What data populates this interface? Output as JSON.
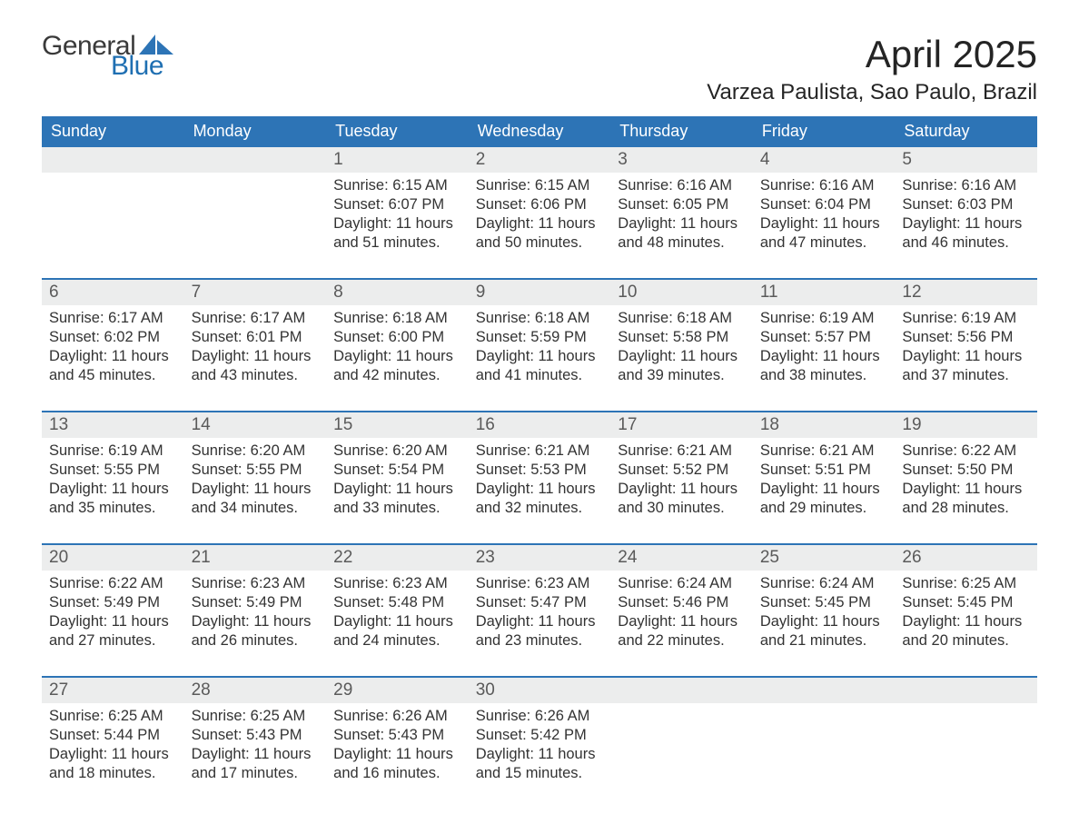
{
  "brand": {
    "word1": "General",
    "word2": "Blue",
    "word1_color": "#3a3a3a",
    "word2_color": "#1f6fb2",
    "sail_color": "#2d74b6"
  },
  "title": "April 2025",
  "location": "Varzea Paulista, Sao Paulo, Brazil",
  "colors": {
    "header_bg": "#2d74b6",
    "header_text": "#ffffff",
    "daynum_bg": "#eceded",
    "daynum_text": "#5a5a5a",
    "body_text": "#333333",
    "week_border": "#2d74b6",
    "page_bg": "#ffffff"
  },
  "daynames": [
    "Sunday",
    "Monday",
    "Tuesday",
    "Wednesday",
    "Thursday",
    "Friday",
    "Saturday"
  ],
  "weeks": [
    [
      {
        "n": "",
        "lines": []
      },
      {
        "n": "",
        "lines": []
      },
      {
        "n": "1",
        "lines": [
          "Sunrise: 6:15 AM",
          "Sunset: 6:07 PM",
          "Daylight: 11 hours and 51 minutes."
        ]
      },
      {
        "n": "2",
        "lines": [
          "Sunrise: 6:15 AM",
          "Sunset: 6:06 PM",
          "Daylight: 11 hours and 50 minutes."
        ]
      },
      {
        "n": "3",
        "lines": [
          "Sunrise: 6:16 AM",
          "Sunset: 6:05 PM",
          "Daylight: 11 hours and 48 minutes."
        ]
      },
      {
        "n": "4",
        "lines": [
          "Sunrise: 6:16 AM",
          "Sunset: 6:04 PM",
          "Daylight: 11 hours and 47 minutes."
        ]
      },
      {
        "n": "5",
        "lines": [
          "Sunrise: 6:16 AM",
          "Sunset: 6:03 PM",
          "Daylight: 11 hours and 46 minutes."
        ]
      }
    ],
    [
      {
        "n": "6",
        "lines": [
          "Sunrise: 6:17 AM",
          "Sunset: 6:02 PM",
          "Daylight: 11 hours and 45 minutes."
        ]
      },
      {
        "n": "7",
        "lines": [
          "Sunrise: 6:17 AM",
          "Sunset: 6:01 PM",
          "Daylight: 11 hours and 43 minutes."
        ]
      },
      {
        "n": "8",
        "lines": [
          "Sunrise: 6:18 AM",
          "Sunset: 6:00 PM",
          "Daylight: 11 hours and 42 minutes."
        ]
      },
      {
        "n": "9",
        "lines": [
          "Sunrise: 6:18 AM",
          "Sunset: 5:59 PM",
          "Daylight: 11 hours and 41 minutes."
        ]
      },
      {
        "n": "10",
        "lines": [
          "Sunrise: 6:18 AM",
          "Sunset: 5:58 PM",
          "Daylight: 11 hours and 39 minutes."
        ]
      },
      {
        "n": "11",
        "lines": [
          "Sunrise: 6:19 AM",
          "Sunset: 5:57 PM",
          "Daylight: 11 hours and 38 minutes."
        ]
      },
      {
        "n": "12",
        "lines": [
          "Sunrise: 6:19 AM",
          "Sunset: 5:56 PM",
          "Daylight: 11 hours and 37 minutes."
        ]
      }
    ],
    [
      {
        "n": "13",
        "lines": [
          "Sunrise: 6:19 AM",
          "Sunset: 5:55 PM",
          "Daylight: 11 hours and 35 minutes."
        ]
      },
      {
        "n": "14",
        "lines": [
          "Sunrise: 6:20 AM",
          "Sunset: 5:55 PM",
          "Daylight: 11 hours and 34 minutes."
        ]
      },
      {
        "n": "15",
        "lines": [
          "Sunrise: 6:20 AM",
          "Sunset: 5:54 PM",
          "Daylight: 11 hours and 33 minutes."
        ]
      },
      {
        "n": "16",
        "lines": [
          "Sunrise: 6:21 AM",
          "Sunset: 5:53 PM",
          "Daylight: 11 hours and 32 minutes."
        ]
      },
      {
        "n": "17",
        "lines": [
          "Sunrise: 6:21 AM",
          "Sunset: 5:52 PM",
          "Daylight: 11 hours and 30 minutes."
        ]
      },
      {
        "n": "18",
        "lines": [
          "Sunrise: 6:21 AM",
          "Sunset: 5:51 PM",
          "Daylight: 11 hours and 29 minutes."
        ]
      },
      {
        "n": "19",
        "lines": [
          "Sunrise: 6:22 AM",
          "Sunset: 5:50 PM",
          "Daylight: 11 hours and 28 minutes."
        ]
      }
    ],
    [
      {
        "n": "20",
        "lines": [
          "Sunrise: 6:22 AM",
          "Sunset: 5:49 PM",
          "Daylight: 11 hours and 27 minutes."
        ]
      },
      {
        "n": "21",
        "lines": [
          "Sunrise: 6:23 AM",
          "Sunset: 5:49 PM",
          "Daylight: 11 hours and 26 minutes."
        ]
      },
      {
        "n": "22",
        "lines": [
          "Sunrise: 6:23 AM",
          "Sunset: 5:48 PM",
          "Daylight: 11 hours and 24 minutes."
        ]
      },
      {
        "n": "23",
        "lines": [
          "Sunrise: 6:23 AM",
          "Sunset: 5:47 PM",
          "Daylight: 11 hours and 23 minutes."
        ]
      },
      {
        "n": "24",
        "lines": [
          "Sunrise: 6:24 AM",
          "Sunset: 5:46 PM",
          "Daylight: 11 hours and 22 minutes."
        ]
      },
      {
        "n": "25",
        "lines": [
          "Sunrise: 6:24 AM",
          "Sunset: 5:45 PM",
          "Daylight: 11 hours and 21 minutes."
        ]
      },
      {
        "n": "26",
        "lines": [
          "Sunrise: 6:25 AM",
          "Sunset: 5:45 PM",
          "Daylight: 11 hours and 20 minutes."
        ]
      }
    ],
    [
      {
        "n": "27",
        "lines": [
          "Sunrise: 6:25 AM",
          "Sunset: 5:44 PM",
          "Daylight: 11 hours and 18 minutes."
        ]
      },
      {
        "n": "28",
        "lines": [
          "Sunrise: 6:25 AM",
          "Sunset: 5:43 PM",
          "Daylight: 11 hours and 17 minutes."
        ]
      },
      {
        "n": "29",
        "lines": [
          "Sunrise: 6:26 AM",
          "Sunset: 5:43 PM",
          "Daylight: 11 hours and 16 minutes."
        ]
      },
      {
        "n": "30",
        "lines": [
          "Sunrise: 6:26 AM",
          "Sunset: 5:42 PM",
          "Daylight: 11 hours and 15 minutes."
        ]
      },
      {
        "n": "",
        "lines": []
      },
      {
        "n": "",
        "lines": []
      },
      {
        "n": "",
        "lines": []
      }
    ]
  ]
}
